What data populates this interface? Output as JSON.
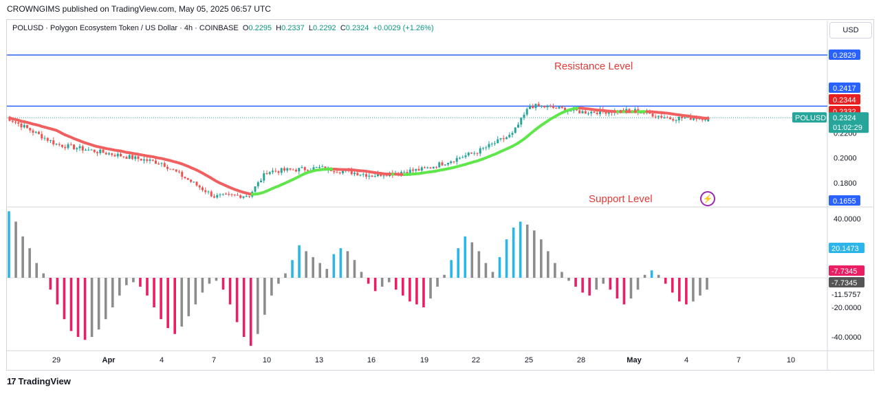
{
  "header": {
    "published": "CROWNGIMS published on TradingView.com, May 05, 2025 06:57 UTC"
  },
  "legend": {
    "symbol_line": "POLUSD · Polygon Ecosystem Token / US Dollar · 4h · COINBASE",
    "o_label": "O",
    "o_value": "0.2295",
    "h_label": "H",
    "h_value": "0.2337",
    "l_label": "L",
    "l_value": "0.2292",
    "c_label": "C",
    "c_value": "0.2324",
    "change": "+0.0029 (+1.26%)"
  },
  "currency_button": "USD",
  "annotations": {
    "resistance": "Resistance Level",
    "support": "Support Level"
  },
  "footer": {
    "brand": "TradingView",
    "logo_mark": "17"
  },
  "colors": {
    "up": "#26a69a",
    "down": "#ef5350",
    "level_line": "#2962ff",
    "ma_up": "#5ee64a",
    "ma_down": "#f06060",
    "hist_up": "#2bb5ea",
    "hist_down": "#e91e63",
    "hist_neutral": "#8c8c8c",
    "annotation": "#e53935"
  },
  "price_scale": {
    "ticks": [
      "0.2000",
      "0.1800"
    ],
    "partial_ticks": [
      "0.2200"
    ],
    "tags": [
      {
        "text": "0.2829",
        "color": "#2962ff"
      },
      {
        "text": "0.2417",
        "color": "#2962ff"
      },
      {
        "text": "0.2344",
        "color": "#e91e1e"
      },
      {
        "text": "0.2332",
        "color": "#e91e1e"
      },
      {
        "text": "0.1655",
        "color": "#2962ff"
      }
    ],
    "current_label": "POLUSD",
    "current_price": "0.2324",
    "countdown": "01:02:29"
  },
  "osc_scale": {
    "ticks": [
      "40.0000",
      "-20.0000",
      "-40.0000",
      "-11.5757"
    ],
    "tags": [
      {
        "text": "20.1473",
        "color": "#2bb5ea"
      },
      {
        "text": "-7.7345",
        "color": "#e91e63"
      },
      {
        "text": "-7.7345",
        "color": "#555555"
      }
    ]
  },
  "x_axis": {
    "labels": [
      "29",
      "Apr",
      "4",
      "7",
      "10",
      "13",
      "16",
      "19",
      "22",
      "25",
      "28",
      "May",
      "4",
      "7",
      "10"
    ]
  },
  "chart_data": [
    {
      "type": "candlestick",
      "symbol": "POLUSD",
      "interval": "4h",
      "x_range": [
        "Mar 26",
        "May 12"
      ],
      "ylim": [
        0.165,
        0.29
      ],
      "horizontal_levels": [
        0.2829,
        0.2417
      ],
      "ma_lines": true,
      "last": {
        "open": 0.2295,
        "high": 0.2337,
        "low": 0.2292,
        "close": 0.2324
      },
      "key_points": [
        {
          "date": "Mar 26",
          "close": 0.234
        },
        {
          "date": "Mar 29",
          "close": 0.211
        },
        {
          "date": "Apr 4",
          "close": 0.196
        },
        {
          "date": "Apr 7",
          "close": 0.169
        },
        {
          "date": "Apr 9",
          "close": 0.17
        },
        {
          "date": "Apr 10",
          "close": 0.189
        },
        {
          "date": "Apr 13",
          "close": 0.192
        },
        {
          "date": "Apr 16",
          "close": 0.186
        },
        {
          "date": "Apr 19",
          "close": 0.191
        },
        {
          "date": "Apr 22",
          "close": 0.205
        },
        {
          "date": "Apr 24",
          "close": 0.219
        },
        {
          "date": "Apr 25",
          "close": 0.242
        },
        {
          "date": "Apr 26",
          "close": 0.241
        },
        {
          "date": "Apr 28",
          "close": 0.237
        },
        {
          "date": "May 1",
          "close": 0.238
        },
        {
          "date": "May 3",
          "close": 0.232
        },
        {
          "date": "May 5",
          "close": 0.2324
        }
      ]
    },
    {
      "type": "bar",
      "name": "oscillator",
      "ylim": [
        -45,
        45
      ],
      "ticks": [
        40,
        -20,
        -40
      ],
      "values": [
        45,
        38,
        28,
        20,
        10,
        3,
        -8,
        -18,
        -28,
        -36,
        -40,
        -42,
        -40,
        -35,
        -28,
        -20,
        -12,
        -5,
        -3,
        -6,
        -12,
        -20,
        -28,
        -34,
        -38,
        -33,
        -26,
        -18,
        -10,
        -4,
        -2,
        -8,
        -18,
        -30,
        -40,
        -46,
        -38,
        -25,
        -12,
        -4,
        3,
        12,
        22,
        18,
        14,
        10,
        6,
        16,
        20,
        18,
        12,
        4,
        -4,
        -9,
        -6,
        -3,
        -8,
        -12,
        -16,
        -18,
        -20,
        -14,
        -6,
        2,
        12,
        20,
        28,
        24,
        18,
        10,
        4,
        14,
        26,
        34,
        38,
        36,
        32,
        26,
        18,
        10,
        4,
        -2,
        -6,
        -10,
        -12,
        -8,
        -4,
        -8,
        -14,
        -18,
        -14,
        -8,
        2,
        5,
        2,
        -4,
        -10,
        -16,
        -18,
        -16,
        -12,
        -8
      ]
    }
  ]
}
